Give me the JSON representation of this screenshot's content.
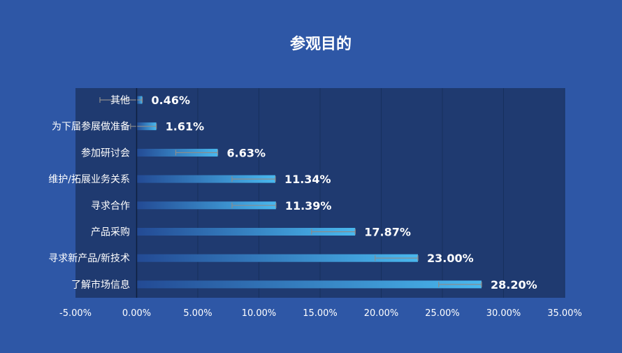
{
  "chart_data": {
    "type": "bar",
    "orientation": "horizontal",
    "title": "参观目的",
    "categories": [
      "其他",
      "为下届参展做准备",
      "参加研讨会",
      "维护/拓展业务关系",
      "寻求合作",
      "产品采购",
      "寻求新产品/新技术",
      "了解市场信息"
    ],
    "values": [
      0.46,
      1.61,
      6.63,
      11.34,
      11.39,
      17.87,
      23.0,
      28.2
    ],
    "value_labels": [
      "0.46%",
      "1.61%",
      "6.63%",
      "11.34%",
      "11.39%",
      "17.87%",
      "23.00%",
      "28.20%"
    ],
    "error_low": [
      -3.0,
      -0.5,
      3.2,
      7.8,
      7.8,
      14.3,
      19.5,
      24.7
    ],
    "error_high": [
      0.46,
      1.61,
      6.63,
      11.34,
      11.39,
      17.87,
      23.0,
      28.2
    ],
    "xlim": [
      -5,
      35
    ],
    "x_ticks": [
      -5,
      0,
      5,
      10,
      15,
      20,
      25,
      30,
      35
    ],
    "x_tick_labels": [
      "-5.00%",
      "0.00%",
      "5.00%",
      "10.00%",
      "15.00%",
      "20.00%",
      "25.00%",
      "30.00%",
      "35.00%"
    ],
    "grid": "vertical",
    "legend": "none",
    "colors": {
      "background": "#2e57a6",
      "plot_background": "#1f3a70",
      "bar_start": "#234a94",
      "bar_end": "#49b8ee",
      "gridline": "#17305d",
      "error_bar": "#8c8c8c",
      "text": "#ffffff"
    }
  }
}
